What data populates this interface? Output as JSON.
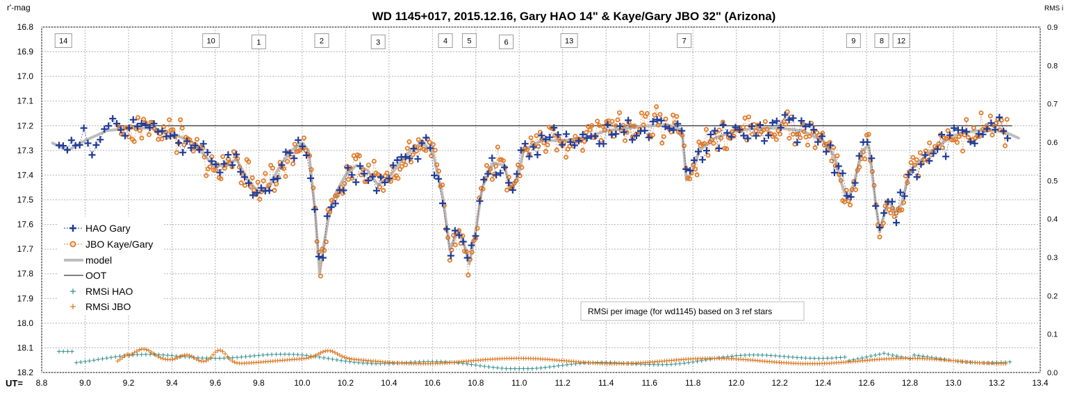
{
  "chart_data": {
    "type": "scatter",
    "title": "WD 1145+017, 2015.12.16, Gary HAO 14\" & Kaye/Gary JBO 32\" (Arizona)",
    "y_left_label": "r'-mag",
    "y_right_label": "RMS i",
    "x_label": "UT=",
    "x_range": [
      8.8,
      13.4
    ],
    "y_left_range": [
      16.8,
      18.2
    ],
    "y_left_inverted": true,
    "y_right_range": [
      0.0,
      0.9
    ],
    "x_ticks": [
      "8.8",
      "9.0",
      "9.2",
      "9.4",
      "9.6",
      "9.8",
      "10.0",
      "10.2",
      "10.4",
      "10.6",
      "10.8",
      "11.0",
      "11.2",
      "11.4",
      "11.6",
      "11.8",
      "12.0",
      "12.2",
      "12.4",
      "12.6",
      "12.8",
      "13.0",
      "13.2",
      "13.4"
    ],
    "y_left_ticks": [
      "16.8",
      "16.9",
      "17.0",
      "17.1",
      "17.2",
      "17.3",
      "17.4",
      "17.5",
      "17.6",
      "17.7",
      "17.8",
      "17.9",
      "18.0",
      "18.1",
      "18.2"
    ],
    "y_right_ticks": [
      "0.9",
      "0.8",
      "0.7",
      "0.6",
      "0.5",
      "0.4",
      "0.3",
      "0.2",
      "0.1",
      "0.0"
    ],
    "grid": true,
    "legend_position": "left-middle",
    "oot_level": 17.2,
    "note": "RMSi per image (for wd1145) based on 3 ref stars",
    "series": [
      {
        "name": "HAO Gary",
        "marker": "plus",
        "color": "#1f3c99",
        "dashed_connector": true
      },
      {
        "name": "JBO Kaye/Gary",
        "marker": "circle",
        "color": "#e07b2a",
        "dashed_connector": true
      },
      {
        "name": "model",
        "marker": "line",
        "color": "#bdbdbd",
        "points": [
          [
            8.85,
            17.27
          ],
          [
            8.92,
            17.3
          ],
          [
            9.0,
            17.26
          ],
          [
            9.1,
            17.22
          ],
          [
            9.2,
            17.21
          ],
          [
            9.3,
            17.21
          ],
          [
            9.4,
            17.23
          ],
          [
            9.5,
            17.27
          ],
          [
            9.55,
            17.32
          ],
          [
            9.6,
            17.37
          ],
          [
            9.65,
            17.35
          ],
          [
            9.7,
            17.34
          ],
          [
            9.75,
            17.42
          ],
          [
            9.8,
            17.47
          ],
          [
            9.85,
            17.44
          ],
          [
            9.9,
            17.36
          ],
          [
            9.95,
            17.3
          ],
          [
            10.0,
            17.27
          ],
          [
            10.03,
            17.3
          ],
          [
            10.06,
            17.55
          ],
          [
            10.08,
            17.8
          ],
          [
            10.1,
            17.68
          ],
          [
            10.12,
            17.58
          ],
          [
            10.15,
            17.48
          ],
          [
            10.2,
            17.4
          ],
          [
            10.25,
            17.36
          ],
          [
            10.3,
            17.38
          ],
          [
            10.35,
            17.44
          ],
          [
            10.4,
            17.41
          ],
          [
            10.45,
            17.35
          ],
          [
            10.5,
            17.3
          ],
          [
            10.55,
            17.27
          ],
          [
            10.6,
            17.3
          ],
          [
            10.65,
            17.5
          ],
          [
            10.68,
            17.7
          ],
          [
            10.72,
            17.62
          ],
          [
            10.74,
            17.66
          ],
          [
            10.77,
            17.76
          ],
          [
            10.8,
            17.62
          ],
          [
            10.83,
            17.45
          ],
          [
            10.88,
            17.35
          ],
          [
            10.93,
            17.36
          ],
          [
            10.96,
            17.45
          ],
          [
            10.99,
            17.42
          ],
          [
            11.02,
            17.3
          ],
          [
            11.1,
            17.26
          ],
          [
            11.2,
            17.26
          ],
          [
            11.3,
            17.25
          ],
          [
            11.4,
            17.22
          ],
          [
            11.5,
            17.21
          ],
          [
            11.6,
            17.2
          ],
          [
            11.7,
            17.2
          ],
          [
            11.75,
            17.22
          ],
          [
            11.77,
            17.42
          ],
          [
            11.8,
            17.38
          ],
          [
            11.83,
            17.3
          ],
          [
            11.9,
            17.25
          ],
          [
            12.0,
            17.22
          ],
          [
            12.1,
            17.21
          ],
          [
            12.2,
            17.21
          ],
          [
            12.3,
            17.22
          ],
          [
            12.4,
            17.26
          ],
          [
            12.45,
            17.32
          ],
          [
            12.48,
            17.42
          ],
          [
            12.51,
            17.5
          ],
          [
            12.54,
            17.44
          ],
          [
            12.58,
            17.3
          ],
          [
            12.61,
            17.28
          ],
          [
            12.64,
            17.5
          ],
          [
            12.66,
            17.63
          ],
          [
            12.7,
            17.5
          ],
          [
            12.73,
            17.55
          ],
          [
            12.76,
            17.52
          ],
          [
            12.8,
            17.38
          ],
          [
            12.9,
            17.3
          ],
          [
            13.0,
            17.24
          ],
          [
            13.1,
            17.22
          ],
          [
            13.2,
            17.22
          ],
          [
            13.25,
            17.23
          ],
          [
            13.3,
            17.25
          ]
        ]
      },
      {
        "name": "OOT",
        "marker": "line",
        "color": "#000000"
      },
      {
        "name": "RMSi HAO",
        "marker": "plus-small",
        "color": "#2e8b8b"
      },
      {
        "name": "RMSi JBO",
        "marker": "plus-small",
        "color": "#d9731a"
      }
    ],
    "dip_labels": [
      {
        "text": "14",
        "x": 8.9,
        "y": 16.855
      },
      {
        "text": "10",
        "x": 9.58,
        "y": 16.855
      },
      {
        "text": "1",
        "x": 9.8,
        "y": 16.86
      },
      {
        "text": "2",
        "x": 10.09,
        "y": 16.855
      },
      {
        "text": "3",
        "x": 10.35,
        "y": 16.86
      },
      {
        "text": "4",
        "x": 10.66,
        "y": 16.855
      },
      {
        "text": "5",
        "x": 10.77,
        "y": 16.855
      },
      {
        "text": "6",
        "x": 10.94,
        "y": 16.86
      },
      {
        "text": "13",
        "x": 11.23,
        "y": 16.855
      },
      {
        "text": "7",
        "x": 11.76,
        "y": 16.855
      },
      {
        "text": "9",
        "x": 12.54,
        "y": 16.855
      },
      {
        "text": "8",
        "x": 12.67,
        "y": 16.855
      },
      {
        "text": "12",
        "x": 12.76,
        "y": 16.855
      }
    ]
  }
}
